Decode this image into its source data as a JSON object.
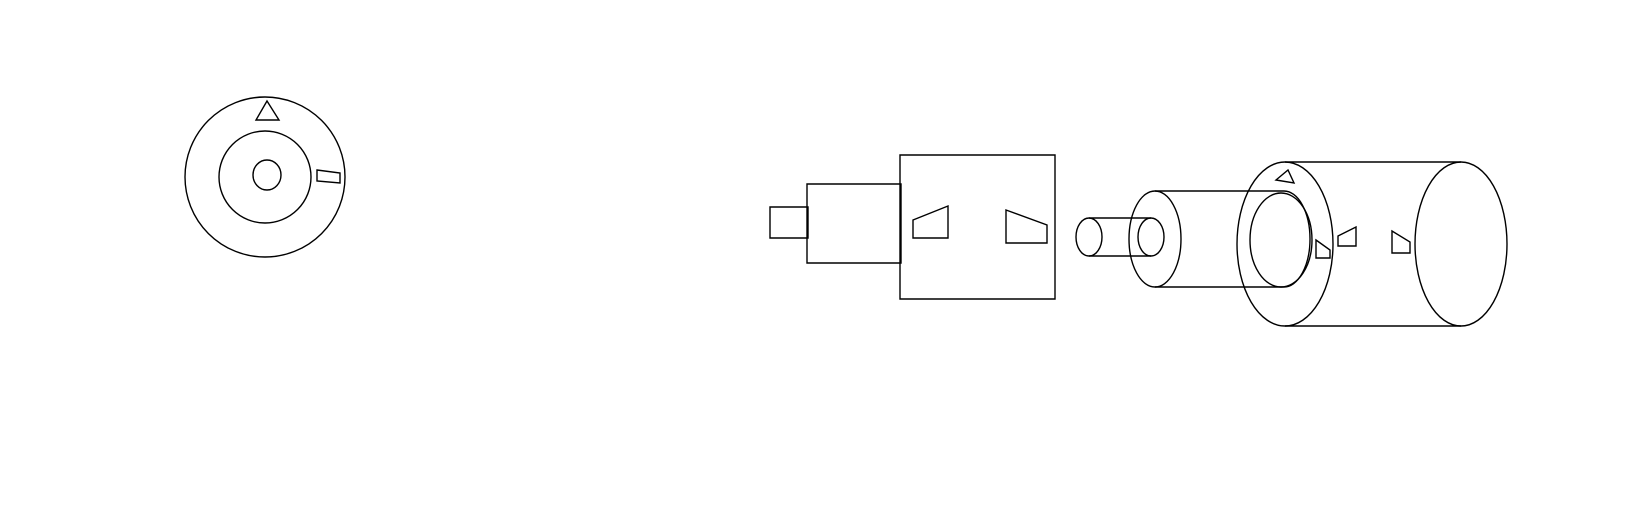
{
  "diagram": {
    "background_color": "#ffffff",
    "line_color": "#000000",
    "views": [
      {
        "name": "end-view",
        "parts": [
          "outer-ring",
          "inner-ring",
          "center-hole",
          "triangle-marker",
          "side-marker"
        ]
      },
      {
        "name": "side-view-stepped-shaft",
        "parts": [
          "small-pin",
          "middle-step",
          "large-body",
          "left-wedge",
          "right-wedge"
        ]
      },
      {
        "name": "exploded-cylinders",
        "parts": [
          "small-cylinder",
          "medium-cylinder",
          "large-cylinder",
          "markers"
        ]
      }
    ]
  }
}
